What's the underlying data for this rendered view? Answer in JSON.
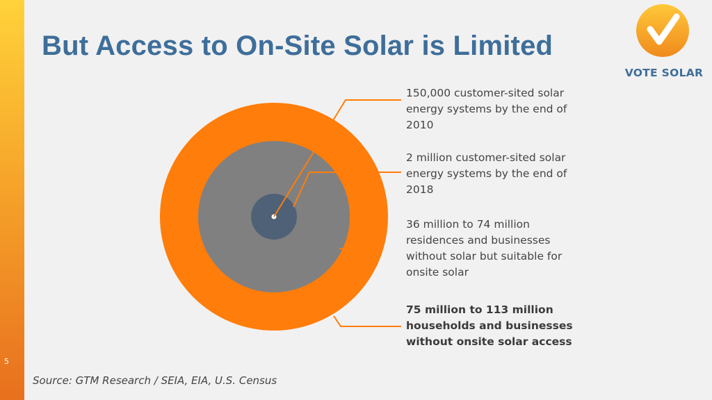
{
  "slide": {
    "title": "But Access to On-Site Solar is Limited",
    "number": "5",
    "source": "Source: GTM Research / SEIA, EIA, U.S. Census"
  },
  "logo": {
    "text": "VOTE SOLAR",
    "icon": "checkmark-icon"
  },
  "diagram": {
    "type": "nested-circles",
    "rings": [
      {
        "label": "150,000 customer-sited solar energy systems by the end of 2010",
        "color": "#ffffff",
        "emphasis": false
      },
      {
        "label": "2 million customer-sited solar energy systems by the end of 2018",
        "color": "#4f6177",
        "emphasis": false
      },
      {
        "label": "36 million to 74 million residences and businesses without solar but suitable for onsite solar",
        "color": "#808080",
        "emphasis": false
      },
      {
        "label": "75 million to 113 million households and businesses without onsite solar access",
        "color": "#ff7d0a",
        "emphasis": true
      }
    ]
  },
  "colors": {
    "accent_orange": "#ff7d0a",
    "title_blue": "#3e6e9a",
    "inner_gray": "#808080",
    "core_slate": "#4f6177"
  }
}
